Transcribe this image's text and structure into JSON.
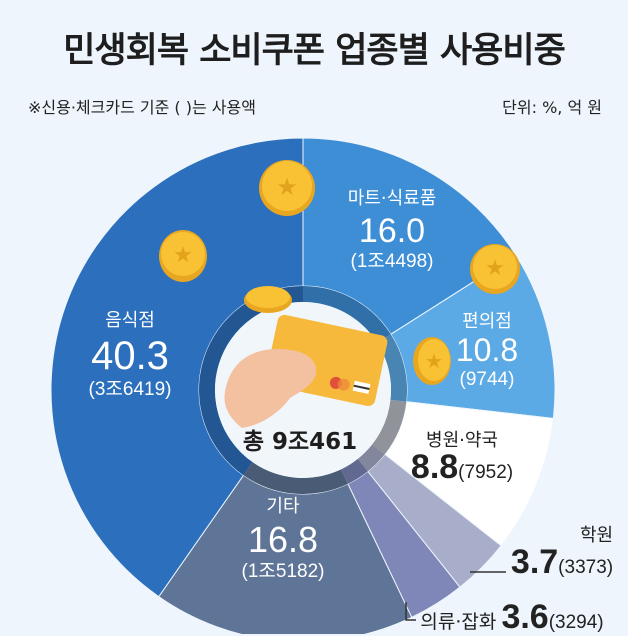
{
  "title": "민생회복 소비쿠폰 업종별 사용비중",
  "note": "※신용·체크카드 기준  ( )는 사용액",
  "unit": "단위: %, 억 원",
  "total": "총 9조461",
  "chart_data": {
    "type": "pie",
    "donut": true,
    "title": "민생회복 소비쿠폰 업종별 사용비중",
    "start": "top, clockwise",
    "categories": [
      "마트·식료품",
      "편의점",
      "병원·약국",
      "학원",
      "의류·잡화",
      "기타",
      "음식점"
    ],
    "values": [
      16.0,
      10.8,
      8.8,
      3.7,
      3.6,
      16.8,
      40.3
    ],
    "value_labels": [
      "16.0",
      "10.8",
      "8.8",
      "3.7",
      "3.6",
      "16.8",
      "40.3"
    ],
    "amounts": [
      "(1조4498)",
      "(9744)",
      "(7952)",
      "(3373)",
      "(3294)",
      "(1조5182)",
      "(3조6419)"
    ],
    "colors": [
      "#3e8ed6",
      "#5caae5",
      "#ffffff",
      "#a8adca",
      "#7e87b8",
      "#5f7597",
      "#2b6fbd"
    ],
    "unit": "%, 억 원"
  }
}
